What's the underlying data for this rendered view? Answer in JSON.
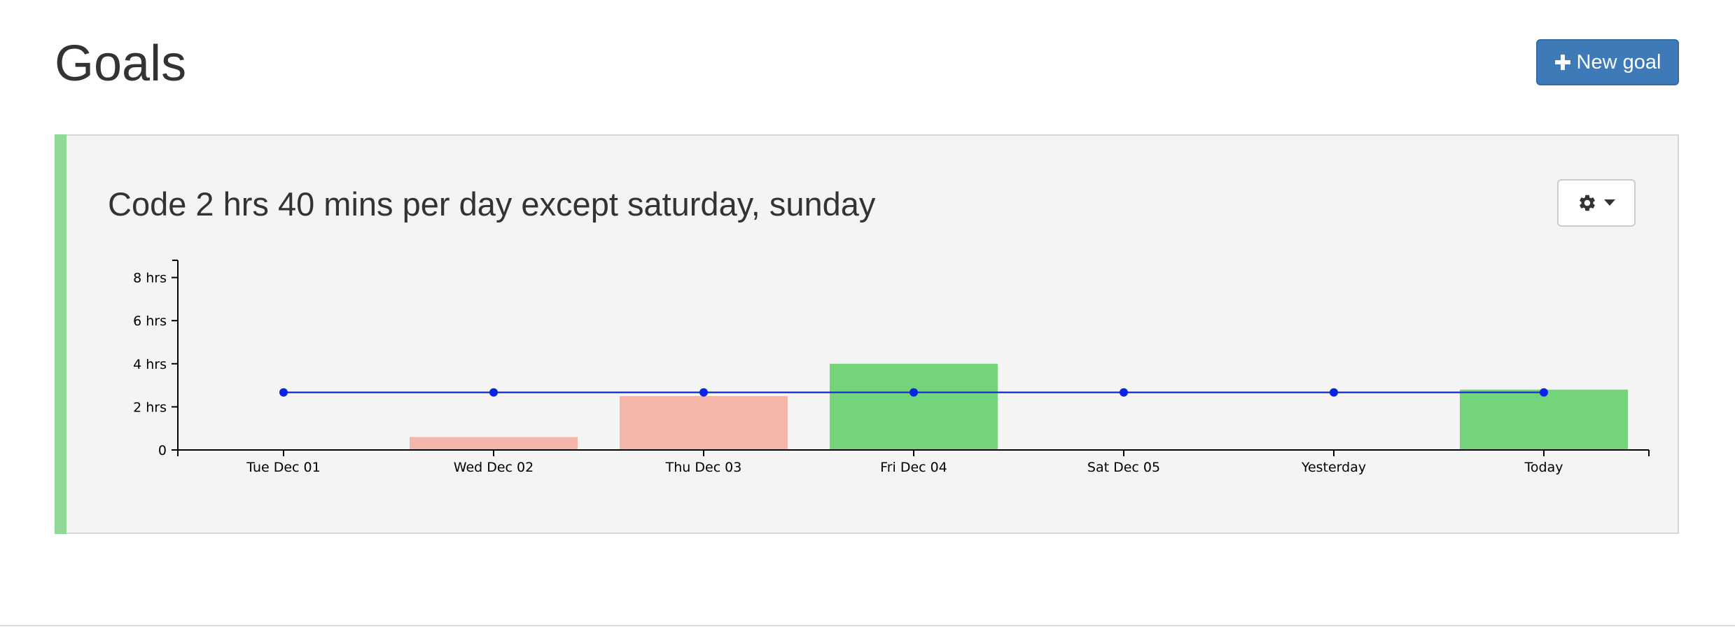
{
  "header": {
    "title": "Goals",
    "new_goal_label": "New goal"
  },
  "goal": {
    "title": "Code 2 hrs 40 mins per day except saturday, sunday",
    "status_color": "#8fd895",
    "settings_icon": "gear-icon",
    "dropdown_icon": "caret-down-icon"
  },
  "colors": {
    "primary_button": "#3d7ab7",
    "met": "#74d47b",
    "missed": "#f4b6a8",
    "goal_line": "#1f3ce0",
    "goal_point": "#0a24e6"
  },
  "chart_data": {
    "type": "bar",
    "categories": [
      "Tue Dec 01",
      "Wed Dec 02",
      "Thu Dec 03",
      "Fri Dec 04",
      "Sat Dec 05",
      "Yesterday",
      "Today"
    ],
    "values": [
      0,
      0.6,
      2.5,
      4.0,
      0,
      0,
      2.8
    ],
    "status": [
      "none",
      "missed",
      "missed",
      "met",
      "none",
      "none",
      "met"
    ],
    "goal_line": {
      "values": [
        2.67,
        2.67,
        2.67,
        2.67,
        2.67,
        2.67,
        2.67
      ]
    },
    "yticks": [
      0,
      2,
      4,
      6,
      8
    ],
    "ytick_labels": [
      "0",
      "2 hrs",
      "4 hrs",
      "6 hrs",
      "8 hrs"
    ],
    "ylim": [
      0,
      8.8
    ],
    "xlabel": "",
    "ylabel": "",
    "grid": false
  }
}
